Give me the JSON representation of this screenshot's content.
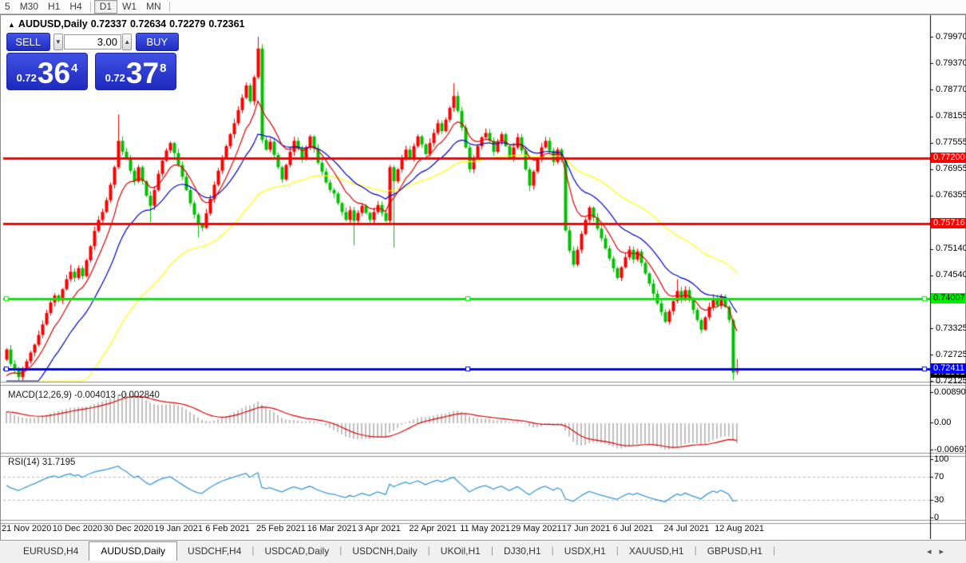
{
  "toolbar": {
    "timeframes": [
      {
        "label": "5",
        "active": false
      },
      {
        "label": "M30",
        "active": false
      },
      {
        "label": "H1",
        "active": false
      },
      {
        "label": "H4",
        "active": false
      },
      {
        "label": "D1",
        "active": true
      },
      {
        "label": "W1",
        "active": false
      },
      {
        "label": "MN",
        "active": false
      }
    ]
  },
  "header": {
    "toggle_icon": "▲",
    "symbol": "AUDUSD,Daily",
    "open": "0.72337",
    "high": "0.72634",
    "low": "0.72279",
    "close": "0.72361"
  },
  "trade_panel": {
    "sell_label": "SELL",
    "buy_label": "BUY",
    "volume": "3.00",
    "spin_down": "▼",
    "spin_up": "▲",
    "sell_price": {
      "small": "0.72",
      "big": "36",
      "sup": "4"
    },
    "buy_price": {
      "small": "0.72",
      "big": "37",
      "sup": "8"
    }
  },
  "price_axis": {
    "labels": [
      {
        "text": "0.79970",
        "price": 0.7997
      },
      {
        "text": "0.79370",
        "price": 0.7937
      },
      {
        "text": "0.78770",
        "price": 0.7877
      },
      {
        "text": "0.78155",
        "price": 0.78155
      },
      {
        "text": "0.77555",
        "price": 0.77555
      },
      {
        "text": "0.76955",
        "price": 0.76955
      },
      {
        "text": "0.76355",
        "price": 0.76355
      },
      {
        "text": "0.75140",
        "price": 0.7514
      },
      {
        "text": "0.74540",
        "price": 0.7454
      },
      {
        "text": "0.73325",
        "price": 0.73325
      },
      {
        "text": "0.72725",
        "price": 0.72725
      },
      {
        "text": "0.72125",
        "price": 0.72125
      }
    ]
  },
  "macd_panel": {
    "label": "MACD(12,26,9)",
    "value_main": "-0.004013",
    "value_signal": "-0.002840",
    "axis_max": "0.008903",
    "axis_zero": "0.00",
    "axis_min": "-0.006977"
  },
  "rsi_panel": {
    "label": "RSI(14)",
    "value": "31.7195",
    "axis": [
      {
        "text": "100",
        "value": 100
      },
      {
        "text": "70",
        "value": 70
      },
      {
        "text": "30",
        "value": 30
      },
      {
        "text": "0",
        "value": 0
      }
    ]
  },
  "dates": [
    "21 Nov 2020",
    "10 Dec 2020",
    "30 Dec 2020",
    "19 Jan 2021",
    "6 Feb 2021",
    "25 Feb 2021",
    "16 Mar 2021",
    "3 Apr 2021",
    "22 Apr 2021",
    "11 May 2021",
    "29 May 2021",
    "17 Jun 2021",
    "6 Jul 2021",
    "24 Jul 2021",
    "12 Aug 2021"
  ],
  "tabs": [
    {
      "label": "EURUSD,H4",
      "active": false
    },
    {
      "label": "AUDUSD,Daily",
      "active": true
    },
    {
      "label": "USDCHF,H4",
      "active": false
    },
    {
      "label": "USDCAD,Daily",
      "active": false
    },
    {
      "label": "USDCNH,Daily",
      "active": false
    },
    {
      "label": "UKOil,H1",
      "active": false
    },
    {
      "label": "DJ30,H1",
      "active": false
    },
    {
      "label": "USDX,H1",
      "active": false
    },
    {
      "label": "XAUUSD,H1",
      "active": false
    },
    {
      "label": "GBPUSD,H1",
      "active": false
    }
  ],
  "nav_arrows": {
    "left": "◂",
    "right": "▸"
  },
  "chart_data": {
    "type": "candlestick",
    "symbol": "AUDUSD",
    "timeframe": "Daily",
    "colors": {
      "up": "#FF0000",
      "down": "#00C000",
      "background": "#FFFFFF"
    },
    "x_labels": [
      "21 Nov 2020",
      "10 Dec 2020",
      "30 Dec 2020",
      "19 Jan 2021",
      "6 Feb 2021",
      "25 Feb 2021",
      "16 Mar 2021",
      "3 Apr 2021",
      "22 Apr 2021",
      "11 May 2021",
      "29 May 2021",
      "17 Jun 2021",
      "6 Jul 2021",
      "24 Jul 2021",
      "12 Aug 2021"
    ],
    "y_ticks": [
      0.7997,
      0.7937,
      0.7877,
      0.78155,
      0.77555,
      0.76955,
      0.76355,
      0.75755,
      0.7514,
      0.7454,
      0.7394,
      0.73325,
      0.72725,
      0.72125
    ],
    "y_range": [
      0.72134,
      0.80443
    ],
    "closes": [
      0.7285,
      0.7252,
      0.7238,
      0.7222,
      0.724,
      0.7258,
      0.7278,
      0.7296,
      0.7318,
      0.7342,
      0.7368,
      0.7392,
      0.7408,
      0.7396,
      0.7422,
      0.7445,
      0.7462,
      0.7448,
      0.747,
      0.7452,
      0.7488,
      0.752,
      0.7555,
      0.758,
      0.7598,
      0.7625,
      0.766,
      0.77,
      0.776,
      0.7735,
      0.772,
      0.7692,
      0.7668,
      0.77,
      0.7668,
      0.7635,
      0.7612,
      0.7648,
      0.7685,
      0.7715,
      0.7738,
      0.7755,
      0.7732,
      0.7705,
      0.7678,
      0.7648,
      0.7618,
      0.7592,
      0.757,
      0.7562,
      0.7595,
      0.7628,
      0.766,
      0.7692,
      0.7722,
      0.7748,
      0.7775,
      0.78,
      0.783,
      0.7858,
      0.7886,
      0.785,
      0.7905,
      0.797,
      0.7762,
      0.774,
      0.7758,
      0.7728,
      0.77,
      0.7672,
      0.7705,
      0.7735,
      0.776,
      0.7742,
      0.7718,
      0.7745,
      0.777,
      0.7742,
      0.771,
      0.769,
      0.7665,
      0.7648,
      0.764,
      0.7618,
      0.7598,
      0.758,
      0.7602,
      0.7578,
      0.7596,
      0.7612,
      0.7596,
      0.758,
      0.7598,
      0.7614,
      0.7596,
      0.7578,
      0.77,
      0.7668,
      0.7695,
      0.7718,
      0.774,
      0.7722,
      0.7748,
      0.777,
      0.7752,
      0.773,
      0.7755,
      0.7778,
      0.78,
      0.7782,
      0.7808,
      0.7835,
      0.7862,
      0.7828,
      0.779,
      0.7745,
      0.7695,
      0.7722,
      0.7748,
      0.7768,
      0.7778,
      0.776,
      0.7735,
      0.7758,
      0.7775,
      0.7748,
      0.7722,
      0.7745,
      0.7768,
      0.7738,
      0.7695,
      0.7658,
      0.769,
      0.772,
      0.7745,
      0.776,
      0.7738,
      0.7712,
      0.774,
      0.7718,
      0.7556,
      0.751,
      0.7478,
      0.7512,
      0.7548,
      0.758,
      0.7608,
      0.7585,
      0.756,
      0.7538,
      0.7515,
      0.7492,
      0.747,
      0.7448,
      0.7472,
      0.7495,
      0.7512,
      0.749,
      0.7508,
      0.7482,
      0.7458,
      0.7435,
      0.7412,
      0.739,
      0.737,
      0.7348,
      0.7372,
      0.7395,
      0.7418,
      0.7398,
      0.742,
      0.7398,
      0.7375,
      0.7352,
      0.733,
      0.7358,
      0.7382,
      0.7402,
      0.7385,
      0.7405,
      0.7382,
      0.7352,
      0.7232,
      0.72361
    ],
    "open_overrides": {
      "0": 0.7262,
      "183": 0.72337
    },
    "wick_overrides": {
      "3": {
        "low": 0.7211
      },
      "16": {
        "high": 0.7478
      },
      "28": {
        "high": 0.782
      },
      "36": {
        "low": 0.7575
      },
      "48": {
        "low": 0.754
      },
      "63": {
        "high": 0.7997
      },
      "87": {
        "low": 0.7522
      },
      "97": {
        "low": 0.7517
      },
      "112": {
        "high": 0.7891
      },
      "116": {
        "low": 0.7688
      },
      "131": {
        "low": 0.7645
      },
      "142": {
        "low": 0.7473
      },
      "168": {
        "high": 0.7445
      },
      "182": {
        "low": 0.7215
      },
      "183": {
        "high": 0.72634,
        "low": 0.72279
      }
    },
    "current_bar": {
      "open": 0.72337,
      "high": 0.72634,
      "low": 0.72279,
      "close": 0.72361
    },
    "moving_averages": [
      {
        "period": 9,
        "seed": 0.721,
        "color": "#E00000"
      },
      {
        "period": 20,
        "seed": 0.713,
        "color": "#0000C8"
      },
      {
        "period": 50,
        "seed": 0.7005,
        "color": "#FFFF00"
      }
    ],
    "hlines": [
      {
        "price": 0.772,
        "label": "0.77200",
        "color": "#FF0000",
        "text_color": "#FFFFFF",
        "handles": false
      },
      {
        "price": 0.75716,
        "label": "0.75716",
        "color": "#FF0000",
        "text_color": "#FFFFFF",
        "handles": false
      },
      {
        "price": 0.74007,
        "label": "0.74007",
        "color": "#00EE00",
        "text_color": "#000000",
        "handles": true
      },
      {
        "price": 0.72411,
        "label": "0.72411",
        "color": "#0000FF",
        "text_color": "#FFFFFF",
        "handles": true
      }
    ],
    "current_price": {
      "label": "0.72361",
      "price": 0.72361,
      "bg": "#000000",
      "text_color": "#FFFFFF"
    },
    "macd": {
      "fast": 12,
      "slow": 26,
      "signal": 9,
      "hist_color": "#C0C0C0",
      "signal_color": "#E00000",
      "displayed_main": -0.004013,
      "displayed_signal": -0.00284,
      "axis_max": 0.008903,
      "axis_min": -0.006977
    },
    "rsi": {
      "period": 14,
      "color": "#3A9AD9",
      "levels": [
        70,
        30
      ],
      "displayed": 31.7195
    }
  }
}
